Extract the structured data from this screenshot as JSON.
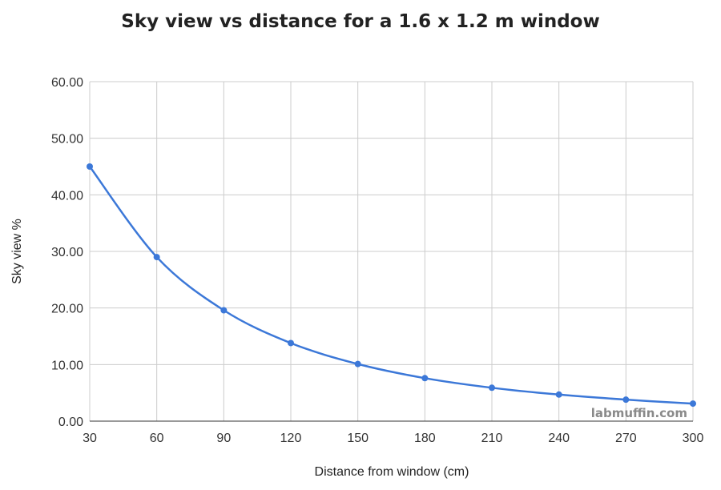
{
  "chart_data": {
    "type": "line",
    "title": "Sky view vs distance for a 1.6 x 1.2 m window",
    "xlabel": "Distance from window (cm)",
    "ylabel": "Sky view %",
    "x": [
      30,
      60,
      90,
      120,
      150,
      180,
      210,
      240,
      270,
      300
    ],
    "series": [
      {
        "values": [
          45.0,
          29.0,
          19.6,
          13.8,
          10.1,
          7.6,
          5.9,
          4.7,
          3.8,
          3.1
        ]
      }
    ],
    "xticks": [
      "30",
      "60",
      "90",
      "120",
      "150",
      "180",
      "210",
      "240",
      "270",
      "300"
    ],
    "yticks": [
      "0.00",
      "10.00",
      "20.00",
      "30.00",
      "40.00",
      "50.00",
      "60.00"
    ],
    "xlim": [
      30,
      300
    ],
    "ylim": [
      0,
      60
    ],
    "grid": true,
    "line_color": "#3c78d8",
    "grid_color": "#cccccc",
    "watermark": "labmuffin.com"
  }
}
